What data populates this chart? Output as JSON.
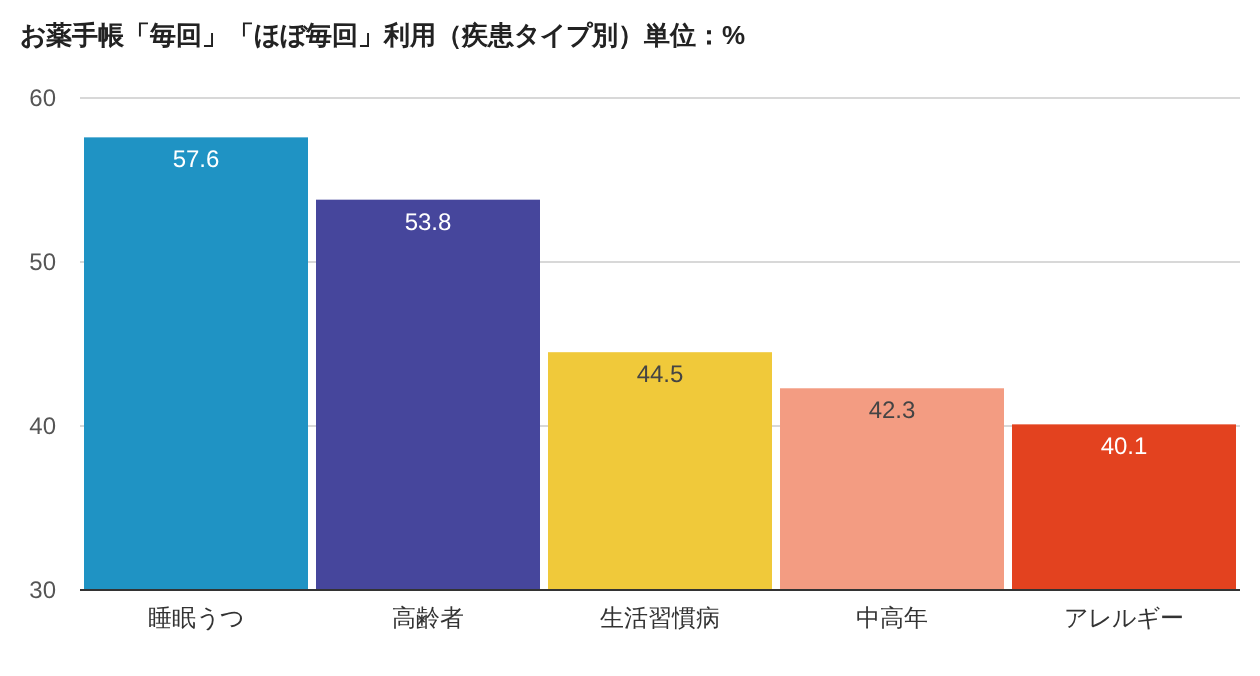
{
  "chart_data": {
    "type": "bar",
    "title": "お薬手帳「毎回」「ほぼ毎回」利用（疾患タイプ別）単位：%",
    "categories": [
      "睡眠うつ",
      "高齢者",
      "生活習慣病",
      "中高年",
      "アレルギー"
    ],
    "values": [
      57.6,
      53.8,
      44.5,
      42.3,
      40.1
    ],
    "colors": [
      "#1f93c4",
      "#46469c",
      "#f0c93a",
      "#f39c82",
      "#e3421f"
    ],
    "ylim": [
      30,
      60
    ],
    "yticks": [
      30,
      40,
      50,
      60
    ],
    "grid": "y",
    "data_labels": true
  }
}
